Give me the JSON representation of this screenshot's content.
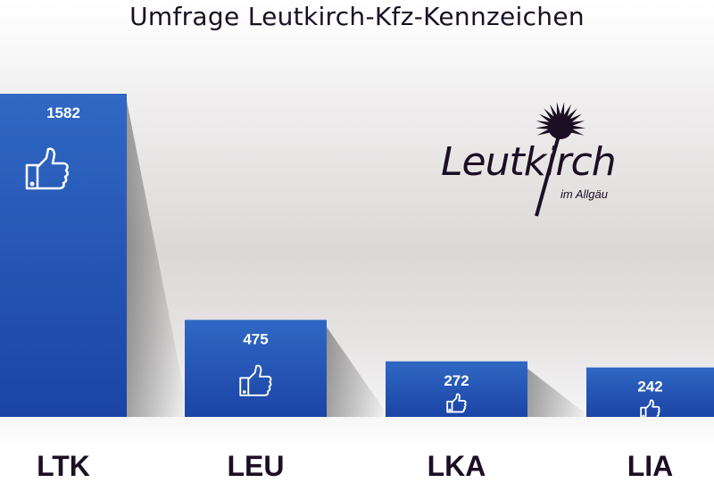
{
  "chart_data": {
    "type": "bar",
    "title": "Umfrage Leutkirch-Kfz-Kennzeichen",
    "categories": [
      "LTK",
      "LEU",
      "LKA",
      "LIA"
    ],
    "values": [
      1582,
      475,
      272,
      242
    ],
    "xlabel": "",
    "ylabel": "",
    "ylim": [
      0,
      1582
    ],
    "grid": false,
    "bar_icon": "thumbs-up-icon",
    "colors": {
      "bar_top": "#3068c4",
      "bar_bottom": "#1b44a6",
      "text": "#1c0f24"
    }
  },
  "logo": {
    "name": "Leutkirch",
    "subtitle": "im Allgäu"
  }
}
